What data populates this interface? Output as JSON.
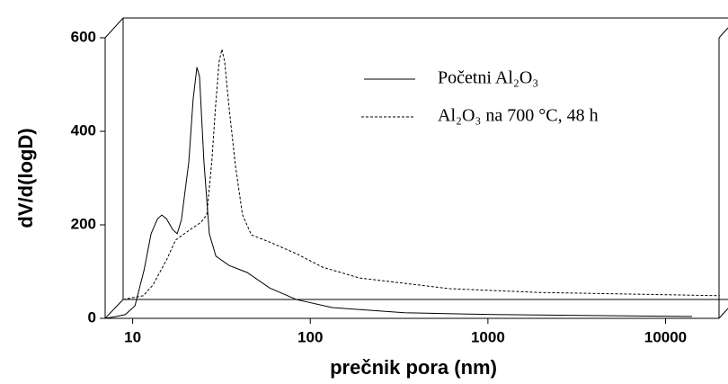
{
  "chart_data": {
    "type": "line",
    "xlabel": "prečnik  pora  (nm)",
    "ylabel": "dV/d(logD)",
    "xscale": "log",
    "xlim": [
      7,
      20000
    ],
    "xticks": [
      10,
      100,
      1000,
      10000
    ],
    "ylim": [
      0,
      600
    ],
    "yticks": [
      0,
      200,
      400,
      600
    ],
    "series": [
      {
        "name": "Početni Al₂O₃",
        "color": "#000000",
        "dash": "solid",
        "x": [
          7,
          8.1,
          9.1,
          10.3,
          11.6,
          12.7,
          13.8,
          14.6,
          15.5,
          16.8,
          17.8,
          18.8,
          20.7,
          21.9,
          23,
          23.8,
          25.2,
          27,
          29.4,
          34.9,
          44.1,
          59,
          83.8,
          133,
          339,
          1086,
          14100
        ],
        "values": [
          0,
          4,
          8,
          27,
          104,
          181,
          213,
          221,
          213,
          190,
          181,
          210,
          335,
          469,
          537,
          517,
          335,
          181,
          133,
          113,
          98,
          65,
          40,
          23,
          12,
          8,
          4
        ]
      },
      {
        "name": "Al₂O₃ na 700 °C,  48 h",
        "color": "#000000",
        "dash": "dashed",
        "x": [
          7,
          9.1,
          10.3,
          12.3,
          13.8,
          16.2,
          19.2,
          20.7,
          22.1,
          23.2,
          24.3,
          25.2,
          26.1,
          27.6,
          30,
          32.9,
          36.9,
          46.5,
          66,
          93,
          150,
          482,
          1546,
          16000
        ],
        "values": [
          0,
          8,
          31,
          85,
          127,
          146,
          165,
          181,
          296,
          412,
          508,
          535,
          508,
          412,
          287,
          181,
          138,
          123,
          98,
          69,
          46,
          23,
          15,
          8
        ]
      }
    ]
  }
}
